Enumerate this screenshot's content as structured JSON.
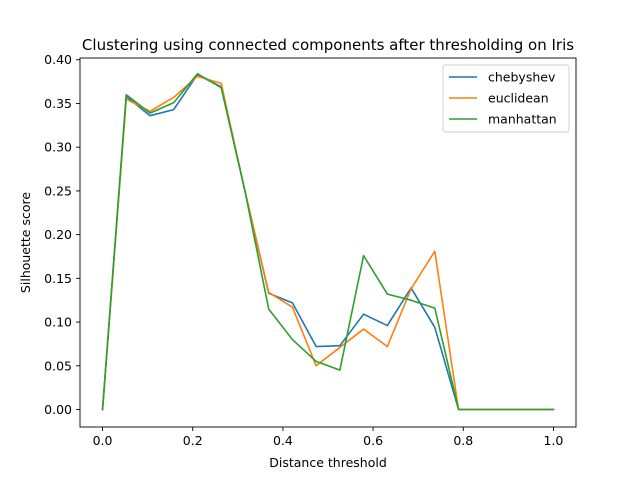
{
  "chart_data": {
    "type": "line",
    "title": "Clustering using connected components after thresholding on Iris",
    "xlabel": "Distance threshold",
    "ylabel": "Silhouette score",
    "xlim": [
      -0.05,
      1.05
    ],
    "ylim": [
      -0.02,
      0.402
    ],
    "xticks": [
      0.0,
      0.2,
      0.4,
      0.6,
      0.8,
      1.0
    ],
    "xtick_labels": [
      "0.0",
      "0.2",
      "0.4",
      "0.6",
      "0.8",
      "1.0"
    ],
    "yticks": [
      0.0,
      0.05,
      0.1,
      0.15,
      0.2,
      0.25,
      0.3,
      0.35,
      0.4
    ],
    "ytick_labels": [
      "0.00",
      "0.05",
      "0.10",
      "0.15",
      "0.20",
      "0.25",
      "0.30",
      "0.35",
      "0.40"
    ],
    "grid": false,
    "legend_position": "top-right",
    "x": [
      0.0,
      0.0526,
      0.1053,
      0.1579,
      0.2105,
      0.2632,
      0.3158,
      0.3684,
      0.4211,
      0.4737,
      0.5263,
      0.5789,
      0.6316,
      0.6842,
      0.7368,
      0.7895,
      0.8421,
      0.8947,
      0.9474,
      1.0
    ],
    "series": [
      {
        "name": "chebyshev",
        "color": "#1f77b4",
        "values": [
          0.0,
          0.358,
          0.336,
          0.343,
          0.383,
          0.369,
          0.25,
          0.133,
          0.122,
          0.072,
          0.073,
          0.109,
          0.096,
          0.139,
          0.094,
          0.0,
          0.0,
          0.0,
          0.0,
          0.0
        ]
      },
      {
        "name": "euclidean",
        "color": "#ff7f0e",
        "values": [
          0.0,
          0.355,
          0.341,
          0.357,
          0.381,
          0.373,
          0.25,
          0.134,
          0.117,
          0.05,
          0.071,
          0.092,
          0.072,
          0.138,
          0.181,
          0.0,
          0.0,
          0.0,
          0.0,
          0.0
        ]
      },
      {
        "name": "manhattan",
        "color": "#2ca02c",
        "values": [
          0.0,
          0.36,
          0.339,
          0.351,
          0.384,
          0.368,
          0.25,
          0.115,
          0.08,
          0.055,
          0.045,
          0.176,
          0.132,
          0.125,
          0.116,
          0.0,
          0.0,
          0.0,
          0.0,
          0.0
        ]
      }
    ]
  }
}
